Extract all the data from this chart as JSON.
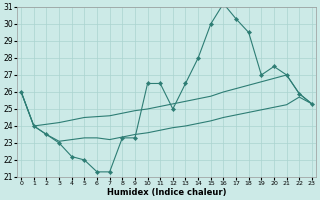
{
  "xlabel": "Humidex (Indice chaleur)",
  "bg_color": "#cceae7",
  "grid_color": "#aad4d0",
  "line_color": "#2d7d74",
  "x_values": [
    0,
    1,
    2,
    3,
    4,
    5,
    6,
    7,
    8,
    9,
    10,
    11,
    12,
    13,
    14,
    15,
    16,
    17,
    18,
    19,
    20,
    21,
    22,
    23
  ],
  "y_main": [
    26,
    24,
    23.5,
    23.0,
    22.2,
    22.0,
    21.3,
    21.3,
    23.3,
    23.3,
    26.5,
    26.5,
    25.0,
    26.5,
    28.0,
    30.0,
    31.2,
    30.3,
    29.5,
    27.0,
    27.5,
    27.0,
    25.9,
    25.3
  ],
  "y_upper": [
    26.0,
    24.0,
    24.1,
    24.2,
    24.35,
    24.5,
    24.55,
    24.6,
    24.75,
    24.9,
    25.0,
    25.15,
    25.3,
    25.45,
    25.6,
    25.75,
    26.0,
    26.2,
    26.4,
    26.6,
    26.8,
    27.0,
    25.9,
    25.3
  ],
  "y_lower": [
    26.0,
    24.0,
    23.5,
    23.1,
    23.2,
    23.3,
    23.3,
    23.2,
    23.35,
    23.5,
    23.6,
    23.75,
    23.9,
    24.0,
    24.15,
    24.3,
    24.5,
    24.65,
    24.8,
    24.95,
    25.1,
    25.25,
    25.7,
    25.3
  ],
  "xlim": [
    0,
    23
  ],
  "ylim": [
    21,
    31
  ],
  "yticks": [
    21,
    22,
    23,
    24,
    25,
    26,
    27,
    28,
    29,
    30,
    31
  ],
  "xticks": [
    0,
    1,
    2,
    3,
    4,
    5,
    6,
    7,
    8,
    9,
    10,
    11,
    12,
    13,
    14,
    15,
    16,
    17,
    18,
    19,
    20,
    21,
    22,
    23
  ]
}
